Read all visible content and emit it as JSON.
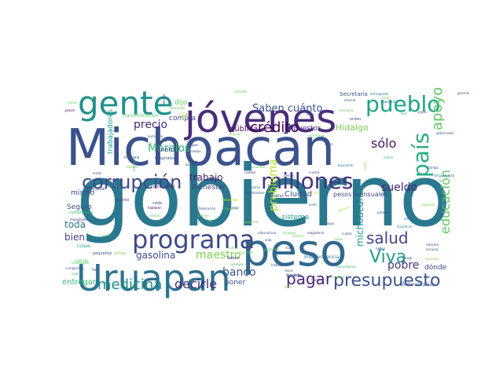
{
  "words": [
    {
      "text": "gobierno",
      "color": "#2a788e"
    },
    {
      "text": "Michoacán",
      "color": "#3b528b"
    },
    {
      "text": "peso",
      "color": "#31688e"
    },
    {
      "text": "jóvenes",
      "color": "#472d7b"
    },
    {
      "text": "Uruapan",
      "color": "#2c728e"
    },
    {
      "text": "gente",
      "color": "#21918c"
    },
    {
      "text": "programa",
      "color": "#3e4989"
    },
    {
      "text": "millones",
      "color": "#46327e"
    },
    {
      "text": "pueblo",
      "color": "#20a386"
    },
    {
      "text": "presupuesto",
      "color": "#3b528b"
    },
    {
      "text": "país",
      "color": "#28ae80"
    },
    {
      "text": "corrupción",
      "color": "#3e4989"
    },
    {
      "text": "pagar",
      "color": "#482475"
    },
    {
      "text": "Viva",
      "color": "#1fa088"
    },
    {
      "text": "salud",
      "color": "#414487"
    },
    {
      "text": "apoyo",
      "color": "#5ec962"
    },
    {
      "text": "medicina",
      "color": "#21918c"
    },
    {
      "text": "decirle",
      "color": "#472c7a"
    },
    {
      "text": "crédito",
      "color": "#440154"
    },
    {
      "text": "sólo",
      "color": "#471365"
    },
    {
      "text": "educación",
      "color": "#5ec962"
    },
    {
      "text": "Saben cuánto",
      "color": "#3b528b"
    },
    {
      "text": "precio",
      "color": "#482878"
    },
    {
      "text": "Morelos",
      "color": "#35b779"
    },
    {
      "text": "sueldo",
      "color": "#482475"
    },
    {
      "text": "michoacano",
      "color": "#1f988b"
    },
    {
      "text": "pobre",
      "color": "#46327e"
    },
    {
      "text": "banco",
      "color": "#3b528b"
    },
    {
      "text": "maestro",
      "color": "#7ad151"
    },
    {
      "text": "gasolina",
      "color": "#3e4989"
    },
    {
      "text": "problema",
      "color": "#b5de2b"
    },
    {
      "text": "trabajo",
      "color": "#481a6c"
    },
    {
      "text": "toda",
      "color": "#2a788e"
    },
    {
      "text": "bien",
      "color": "#433e85"
    },
    {
      "text": "entregar",
      "color": "#35b779"
    },
    {
      "text": "Hidalgo",
      "color": "#7ad151"
    },
    {
      "text": "pública",
      "color": "#471164"
    },
    {
      "text": "trabajadores",
      "color": "#1f9e89"
    },
    {
      "text": "Ciudad",
      "color": "#3e4989"
    },
    {
      "text": "Seguro",
      "color": "#3e4989"
    },
    {
      "text": "dinero",
      "color": "#424086"
    },
    {
      "text": "impuestos",
      "color": "#482677"
    },
    {
      "text": "compra",
      "color": "#404688"
    },
    {
      "text": "dijo",
      "color": "#5ec962"
    },
    {
      "text": "Bienestar",
      "color": "#404688"
    },
    {
      "text": "mismo",
      "color": "#3e4989"
    },
    {
      "text": "sistema",
      "color": "#1f9e89"
    },
    {
      "text": "dónde",
      "color": "#404688"
    },
    {
      "text": "poner",
      "color": "#3b528b"
    },
    {
      "text": "ir",
      "color": "#a0da39"
    },
    {
      "text": "pesos mensuales",
      "color": "#3e4989"
    },
    {
      "text": "Independencia",
      "color": "#2c728e"
    },
    {
      "text": "federalización",
      "color": "#3b528b"
    },
    {
      "text": "transformación",
      "color": "#5ec962"
    },
    {
      "text": "Secretaría",
      "color": "#3b528b"
    },
    {
      "text": "hospitales",
      "color": "#3b528b"
    },
    {
      "text": "compromiso",
      "color": "#35b779"
    },
    {
      "text": "combustible",
      "color": "#46327e"
    },
    {
      "text": "ayudar",
      "color": "#3b528b"
    },
    {
      "text": "cosas",
      "color": "#22a884"
    },
    {
      "text": "pequeños",
      "color": "#3b528b"
    },
    {
      "text": "arriba",
      "color": "#7ad151"
    },
    {
      "text": "hacerlo",
      "color": "#3e4989"
    },
    {
      "text": "comisión",
      "color": "#5ec962"
    },
    {
      "text": "entregando",
      "color": "#2a788e"
    },
    {
      "text": "general",
      "color": "#3b528b"
    },
    {
      "text": "nuevo",
      "color": "#5ec962"
    },
    {
      "text": "ponen",
      "color": "#440154"
    },
    {
      "text": "campo",
      "color": "#3e4989"
    },
    {
      "text": "mejor",
      "color": "#a0da39"
    },
    {
      "text": "cuánto",
      "color": "#443a83"
    },
    {
      "text": "hablaron",
      "color": "#440154"
    },
    {
      "text": "salario",
      "color": "#5ec962"
    },
    {
      "text": "escuelas",
      "color": "#c2df23"
    },
    {
      "text": "cada",
      "color": "#3e4989"
    },
    {
      "text": "maestros",
      "color": "#5ec962"
    },
    {
      "text": "censo",
      "color": "#3b528b"
    },
    {
      "text": "camino",
      "color": "#5ec962"
    },
    {
      "text": "avión",
      "color": "#2a788e"
    },
    {
      "text": "casa",
      "color": "#d8e219"
    },
    {
      "text": "empresa",
      "color": "#2a788e"
    },
    {
      "text": "federación",
      "color": "#3b528b"
    },
    {
      "text": "reforma",
      "color": "#3b528b"
    },
    {
      "text": "manera",
      "color": "#3b528b"
    },
    {
      "text": "robaban",
      "color": "#7ad151"
    },
    {
      "text": "alternativas",
      "color": "#3b528b"
    },
    {
      "text": "magisterio",
      "color": "#443a83"
    },
    {
      "text": "Ocampo",
      "color": "#5ec962"
    },
    {
      "text": "ejemplo",
      "color": "#a0da39"
    },
    {
      "text": "pensión",
      "color": "#3e4989"
    },
    {
      "text": "artesano",
      "color": "#2a788e"
    },
    {
      "text": "abajo",
      "color": "#3b528b"
    },
    {
      "text": "huachicol",
      "color": "#2a788e"
    },
    {
      "text": "familia",
      "color": "#3e4989"
    },
    {
      "text": "millón",
      "color": "#35b779"
    },
    {
      "text": "base",
      "color": "#3b528b"
    },
    {
      "text": "beca",
      "color": "#3e4989"
    },
    {
      "text": "siempre",
      "color": "#35b779"
    },
    {
      "text": "Saben",
      "color": "#46327e"
    },
    {
      "text": "Garantía",
      "color": "#5ec962"
    },
    {
      "text": "trabajar",
      "color": "#3b528b"
    },
    {
      "text": "falta",
      "color": "#7ad151"
    },
    {
      "text": "humilde",
      "color": "#3b528b"
    },
    {
      "text": "construir",
      "color": "#7ad151"
    },
    {
      "text": "productor",
      "color": "#5ec962"
    },
    {
      "text": "gran",
      "color": "#2a788e"
    },
    {
      "text": "lujo",
      "color": "#46327e"
    },
    {
      "text": "vida",
      "color": "#3e4989"
    },
    {
      "text": "viven",
      "color": "#5ec962"
    },
    {
      "text": "cumpliendo",
      "color": "#3b528b"
    },
    {
      "text": "importante",
      "color": "#46327e"
    },
    {
      "text": "orden",
      "color": "#3b528b"
    },
    {
      "text": "ahorrar",
      "color": "#3b528b"
    },
    {
      "text": "trabajando",
      "color": "#2a788e"
    },
    {
      "text": "sacar",
      "color": "#7ad151"
    },
    {
      "text": "pipas",
      "color": "#3e4989"
    },
    {
      "text": "seis",
      "color": "#35b779"
    },
    {
      "text": "tiempo",
      "color": "#46327e"
    },
    {
      "text": "tutoriales",
      "color": "#5ec962"
    },
    {
      "text": "quedar",
      "color": "#3e4989"
    },
    {
      "text": "aumentar",
      "color": "#3b528b"
    },
    {
      "text": "cualquier",
      "color": "#5ec962"
    },
    {
      "text": "tan",
      "color": "#3b528b"
    },
    {
      "text": "mil",
      "color": "#5ec962"
    },
    {
      "text": "pagando",
      "color": "#7ad151"
    },
    {
      "text": "cuatro",
      "color": "#3b528b"
    },
    {
      "text": "buscando",
      "color": "#2a788e"
    },
    {
      "text": "hizo",
      "color": "#3e4989"
    },
    {
      "text": "nadie",
      "color": "#5ec962"
    },
    {
      "text": "haciendo",
      "color": "#3b528b"
    },
    {
      "text": "Popular",
      "color": "#7ad151"
    },
    {
      "text": "muchas",
      "color": "#5ec962"
    },
    {
      "text": "Fertilizantes",
      "color": "#3b528b"
    },
    {
      "text": "estudian",
      "color": "#3b528b"
    },
    {
      "text": "meses",
      "color": "#3b528b"
    },
    {
      "text": "diezmo",
      "color": "#7ad151"
    },
    {
      "text": "cuesta",
      "color": "#3b528b"
    },
    {
      "text": "discapacidad",
      "color": "#2a788e"
    },
    {
      "text": "entrega",
      "color": "#35b779"
    },
    {
      "text": "andar",
      "color": "#3b528b"
    },
    {
      "text": "consejos",
      "color": "#5ec962"
    },
    {
      "text": "cuál",
      "color": "#35b779"
    },
    {
      "text": "llega",
      "color": "#3b528b"
    },
    {
      "text": "queremos",
      "color": "#5ec962"
    },
    {
      "text": "pagan",
      "color": "#3e4989"
    },
    {
      "text": "cuento",
      "color": "#5ec962"
    },
    {
      "text": "boleta",
      "color": "#3b528b"
    },
    {
      "text": "pagarles",
      "color": "#7ad151"
    },
    {
      "text": "vengo",
      "color": "#3b528b"
    },
    {
      "text": "necesitamos",
      "color": "#35b779"
    },
    {
      "text": "ganar",
      "color": "#3b528b"
    },
    {
      "text": "cambio",
      "color": "#46327e"
    },
    {
      "text": "funciona",
      "color": "#5ec962"
    },
    {
      "text": "gobernador",
      "color": "#3b528b"
    },
    {
      "text": "nacional",
      "color": "#7ad151"
    },
    {
      "text": "escuela",
      "color": "#3b528b"
    },
    {
      "text": "obras",
      "color": "#2a788e"
    }
  ]
}
